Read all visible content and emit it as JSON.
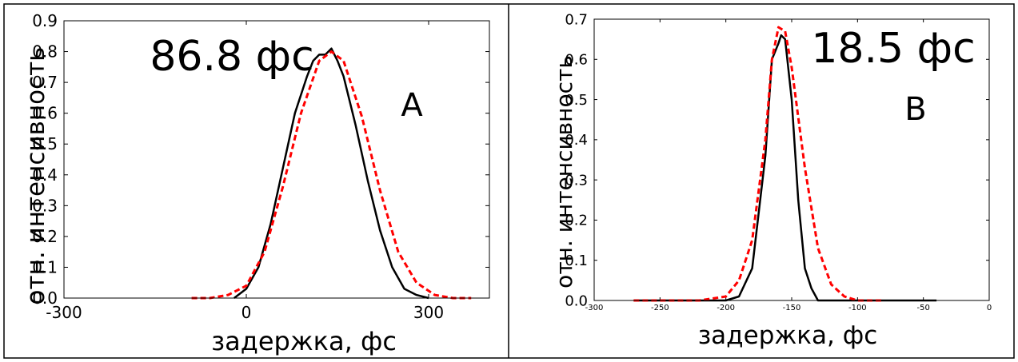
{
  "chart_data": [
    {
      "type": "line",
      "panel_label": "A",
      "annotation": "86.8 фс",
      "xlabel": "задержка, фс",
      "ylabel": "отн. интенсивность",
      "xlim": [
        -300,
        400
      ],
      "ylim": [
        0,
        0.9
      ],
      "xticks": [
        -300,
        0,
        300
      ],
      "xtick_labels": [
        "-300",
        "0",
        "300"
      ],
      "yticks": [
        0,
        0.1,
        0.2,
        0.3,
        0.4,
        0.5,
        0.6,
        0.7,
        0.8,
        0.9
      ],
      "ytick_labels": [
        "0.0",
        "0.1",
        "0.2",
        "0.3",
        "0.4",
        "0.5",
        "0.6",
        "0.7",
        "0.8",
        "0.9"
      ],
      "grid": false,
      "colors": {
        "measured": "#000000",
        "fit": "#ff0000"
      },
      "series": [
        {
          "style": "solid",
          "x": [
            -20,
            0,
            20,
            40,
            60,
            80,
            100,
            110,
            120,
            130,
            135,
            140,
            145,
            150,
            160,
            180,
            200,
            220,
            240,
            260,
            280,
            300
          ],
          "y": [
            0.0,
            0.03,
            0.1,
            0.24,
            0.42,
            0.6,
            0.72,
            0.77,
            0.79,
            0.79,
            0.8,
            0.81,
            0.79,
            0.77,
            0.72,
            0.56,
            0.38,
            0.22,
            0.1,
            0.03,
            0.01,
            0.0
          ]
        },
        {
          "style": "dashed",
          "x": [
            -90,
            -60,
            -30,
            0,
            30,
            60,
            90,
            120,
            140,
            160,
            190,
            220,
            250,
            280,
            310,
            340,
            370
          ],
          "y": [
            0.0,
            0.0,
            0.01,
            0.04,
            0.15,
            0.36,
            0.6,
            0.77,
            0.8,
            0.77,
            0.59,
            0.35,
            0.15,
            0.05,
            0.01,
            0.0,
            0.0
          ]
        }
      ]
    },
    {
      "type": "line",
      "panel_label": "B",
      "annotation": "18.5 фс",
      "xlabel": "задержка, фс",
      "ylabel": "отн. интенсивность",
      "xlim": [
        -300,
        0
      ],
      "ylim": [
        0,
        0.7
      ],
      "xticks": [
        -300,
        -250,
        -200,
        -150,
        -100,
        -50,
        0
      ],
      "xtick_labels": [
        "-300",
        "-250",
        "-200",
        "-150",
        "-100",
        "-50",
        "0"
      ],
      "yticks": [
        0,
        0.1,
        0.2,
        0.3,
        0.4,
        0.5,
        0.6,
        0.7
      ],
      "ytick_labels": [
        "0.0",
        "0.1",
        "0.2",
        "0.3",
        "0.4",
        "0.5",
        "0.6",
        "0.7"
      ],
      "grid": false,
      "colors": {
        "measured": "#000000",
        "fit": "#ff0000"
      },
      "series": [
        {
          "style": "solid",
          "x": [
            -270,
            -200,
            -190,
            -180,
            -170,
            -165,
            -160,
            -158,
            -155,
            -150,
            -145,
            -140,
            -135,
            -130,
            -120,
            -100,
            -70,
            -40
          ],
          "y": [
            0.0,
            0.0,
            0.01,
            0.08,
            0.36,
            0.6,
            0.64,
            0.66,
            0.65,
            0.5,
            0.25,
            0.08,
            0.03,
            0.0,
            0.0,
            0.0,
            0.0,
            0.0
          ]
        },
        {
          "style": "dashed",
          "x": [
            -270,
            -240,
            -220,
            -200,
            -190,
            -180,
            -170,
            -165,
            -160,
            -155,
            -150,
            -140,
            -130,
            -120,
            -110,
            -100,
            -90,
            -80
          ],
          "y": [
            0.0,
            0.0,
            0.0,
            0.01,
            0.05,
            0.15,
            0.4,
            0.6,
            0.68,
            0.67,
            0.58,
            0.33,
            0.13,
            0.04,
            0.01,
            0.0,
            0.0,
            0.0
          ]
        }
      ]
    }
  ]
}
